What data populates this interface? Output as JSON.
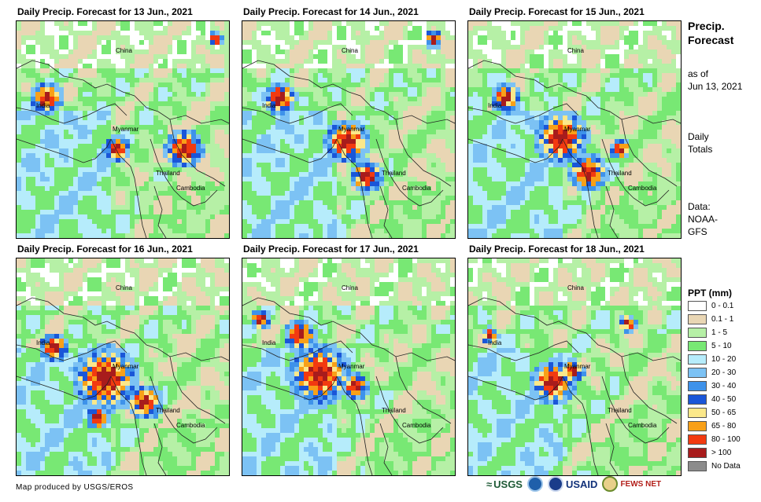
{
  "panels": [
    {
      "title": "Daily Precip. Forecast for 13 Jun., 2021"
    },
    {
      "title": "Daily Precip. Forecast for 14 Jun., 2021"
    },
    {
      "title": "Daily Precip. Forecast for 15 Jun., 2021"
    },
    {
      "title": "Daily Precip. Forecast for 16 Jun., 2021"
    },
    {
      "title": "Daily Precip. Forecast for 17 Jun., 2021"
    },
    {
      "title": "Daily Precip. Forecast for 18 Jun., 2021"
    }
  ],
  "place_labels": {
    "china": "China",
    "india": "India",
    "myanmar": "Myanmar",
    "thailand": "Thailand",
    "cambodia": "Cambodia"
  },
  "sidebar": {
    "title_line1": "Precip.",
    "title_line2": "Forecast",
    "asof_line1": "as of",
    "asof_line2": "Jun 13, 2021",
    "totals_line1": "Daily",
    "totals_line2": "Totals",
    "data_line1": "Data:",
    "data_line2": "NOAA-",
    "data_line3": "GFS"
  },
  "legend": {
    "title": "PPT (mm)",
    "items": [
      {
        "label": "0 - 0.1",
        "color": "#ffffff"
      },
      {
        "label": "0.1 - 1",
        "color": "#e9d6b4"
      },
      {
        "label": "1 - 5",
        "color": "#b6f0a6"
      },
      {
        "label": "5 - 10",
        "color": "#78e874"
      },
      {
        "label": "10 - 20",
        "color": "#b6ecfb"
      },
      {
        "label": "20 - 30",
        "color": "#7cc2f4"
      },
      {
        "label": "30 - 40",
        "color": "#3e92ea"
      },
      {
        "label": "40 - 50",
        "color": "#1a56d8"
      },
      {
        "label": "50 - 65",
        "color": "#fbe88a"
      },
      {
        "label": "65 - 80",
        "color": "#f8a018"
      },
      {
        "label": "80 - 100",
        "color": "#f23a10"
      },
      {
        "label": "> 100",
        "color": "#a81c1c"
      },
      {
        "label": "No Data",
        "color": "#8c8c8c"
      }
    ]
  },
  "footer": {
    "credit": "Map produced by USGS/EROS",
    "usgs": "USGS",
    "usaid": "USAID",
    "fews": "FEWS NET"
  }
}
